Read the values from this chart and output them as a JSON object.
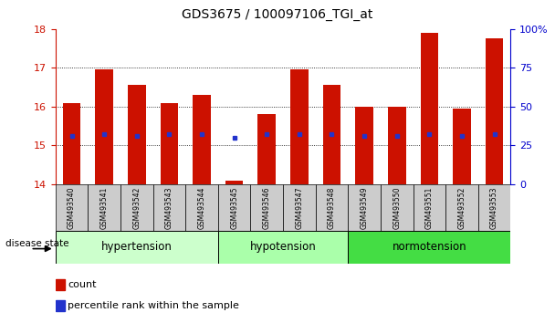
{
  "title": "GDS3675 / 100097106_TGI_at",
  "samples": [
    "GSM493540",
    "GSM493541",
    "GSM493542",
    "GSM493543",
    "GSM493544",
    "GSM493545",
    "GSM493546",
    "GSM493547",
    "GSM493548",
    "GSM493549",
    "GSM493550",
    "GSM493551",
    "GSM493552",
    "GSM493553"
  ],
  "bar_tops": [
    16.1,
    16.95,
    16.55,
    16.1,
    16.3,
    14.1,
    15.8,
    16.95,
    16.55,
    16.0,
    16.0,
    17.9,
    15.95,
    17.75
  ],
  "bar_bottom": 14.0,
  "blue_markers": [
    15.25,
    15.3,
    15.25,
    15.3,
    15.28,
    15.2,
    15.28,
    15.28,
    15.28,
    15.25,
    15.25,
    15.3,
    15.25,
    15.3
  ],
  "bar_color": "#cc1100",
  "blue_color": "#2233cc",
  "ylim_left": [
    14,
    18
  ],
  "ylim_right": [
    0,
    100
  ],
  "yticks_left": [
    14,
    15,
    16,
    17,
    18
  ],
  "yticks_right": [
    0,
    25,
    50,
    75,
    100
  ],
  "ytick_labels_right": [
    "0",
    "25",
    "50",
    "75",
    "100%"
  ],
  "groups": [
    {
      "label": "hypertension",
      "start": 0,
      "end": 5,
      "color": "#ccffcc"
    },
    {
      "label": "hypotension",
      "start": 5,
      "end": 9,
      "color": "#aaffaa"
    },
    {
      "label": "normotension",
      "start": 9,
      "end": 14,
      "color": "#44dd44"
    }
  ],
  "disease_state_label": "disease state",
  "legend_count": "count",
  "legend_percentile": "percentile rank within the sample",
  "bar_width": 0.55,
  "background_color": "#ffffff",
  "plot_bg": "#ffffff",
  "tick_color_left": "#cc1100",
  "tick_color_right": "#0000cc",
  "grid_color": "#000000",
  "sample_bg": "#cccccc",
  "gridlines": [
    15,
    16,
    17
  ]
}
